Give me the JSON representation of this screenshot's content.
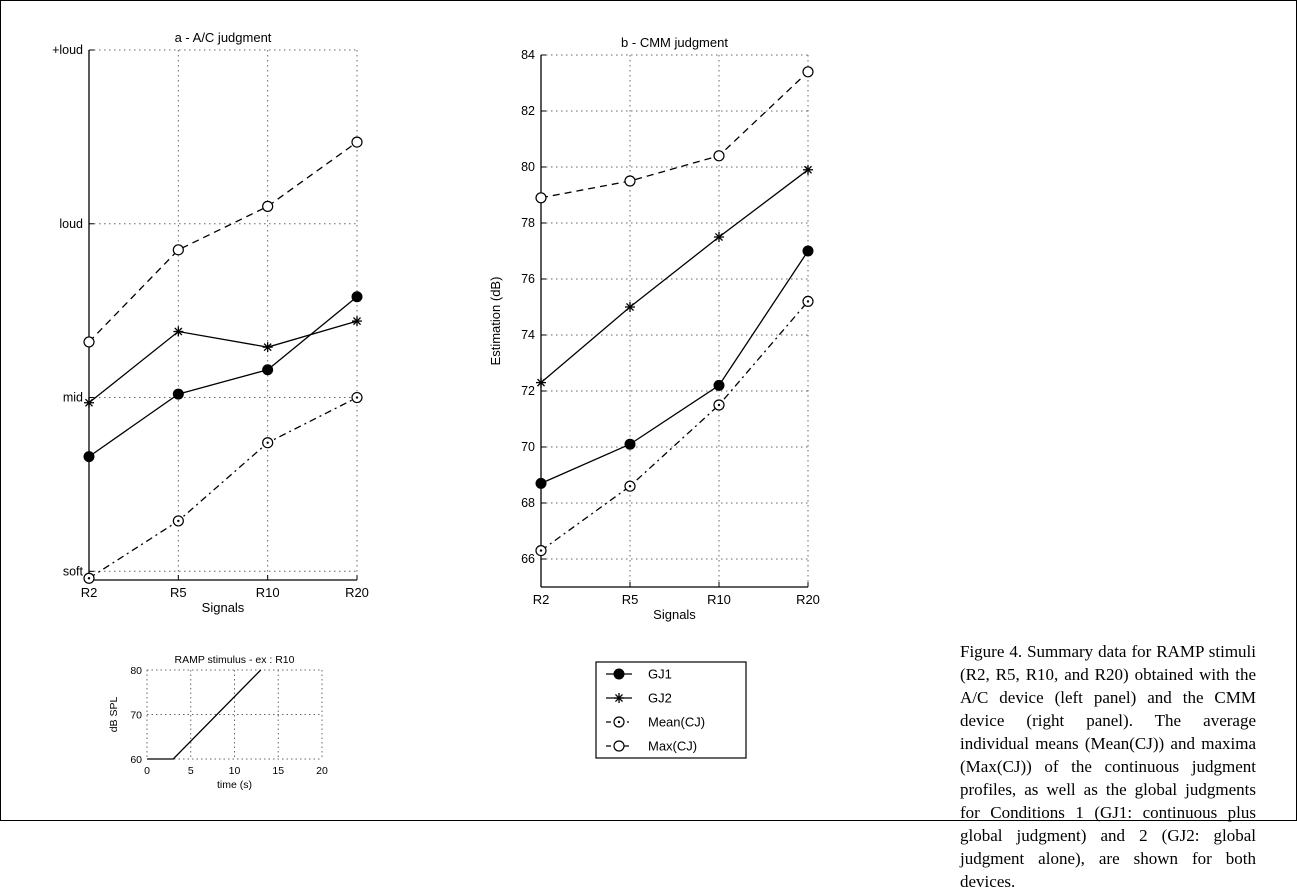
{
  "caption": "Figure 4. Summary data for RAMP stimuli (R2, R5, R10, and R20) obtained with the A/C device (left panel) and the CMM device (right panel). The average individual means (Mean(CJ)) and maxima (Max(CJ)) of the continuous judgment profiles, as well as the global judgments for Conditions 1 (GJ1: continuous plus global judgment) and 2 (GJ2: global judgment alone), are shown for both devices.",
  "chart_data": [
    {
      "type": "line",
      "title": "a - A/C judgment",
      "xlabel": "Signals",
      "ylabel": "",
      "categories": [
        "R2",
        "R5",
        "R10",
        "R20"
      ],
      "yticks": [
        {
          "value": 0,
          "label": "soft"
        },
        {
          "value": 1,
          "label": "mid"
        },
        {
          "value": 2,
          "label": "loud"
        },
        {
          "value": 3,
          "label": "+loud"
        }
      ],
      "ylim": [
        -0.05,
        3.0
      ],
      "grid": true,
      "series": [
        {
          "name": "GJ1",
          "marker": "filled-circle",
          "line": "solid",
          "values": [
            0.66,
            1.02,
            1.16,
            1.58
          ]
        },
        {
          "name": "GJ2",
          "marker": "star",
          "line": "solid",
          "values": [
            0.97,
            1.38,
            1.29,
            1.44
          ]
        },
        {
          "name": "Mean(CJ)",
          "marker": "dotted-circle",
          "line": "dashdot",
          "values": [
            -0.04,
            0.29,
            0.74,
            1.0
          ]
        },
        {
          "name": "Max(CJ)",
          "marker": "open-circle",
          "line": "dashed",
          "values": [
            1.32,
            1.85,
            2.1,
            2.47
          ]
        }
      ]
    },
    {
      "type": "line",
      "title": "b - CMM judgment",
      "xlabel": "Signals",
      "ylabel": "Estimation (dB)",
      "categories": [
        "R2",
        "R5",
        "R10",
        "R20"
      ],
      "yticks": [
        {
          "value": 66,
          "label": "66"
        },
        {
          "value": 68,
          "label": "68"
        },
        {
          "value": 70,
          "label": "70"
        },
        {
          "value": 72,
          "label": "72"
        },
        {
          "value": 74,
          "label": "74"
        },
        {
          "value": 76,
          "label": "76"
        },
        {
          "value": 78,
          "label": "78"
        },
        {
          "value": 80,
          "label": "80"
        },
        {
          "value": 82,
          "label": "82"
        },
        {
          "value": 84,
          "label": "84"
        }
      ],
      "ylim": [
        65,
        84
      ],
      "grid": true,
      "legend_position": "below",
      "series": [
        {
          "name": "GJ1",
          "marker": "filled-circle",
          "line": "solid",
          "values": [
            68.7,
            70.1,
            72.2,
            77.0
          ]
        },
        {
          "name": "GJ2",
          "marker": "star",
          "line": "solid",
          "values": [
            72.3,
            75.0,
            77.5,
            79.9
          ]
        },
        {
          "name": "Mean(CJ)",
          "marker": "dotted-circle",
          "line": "dashdot",
          "values": [
            66.3,
            68.6,
            71.5,
            75.2
          ]
        },
        {
          "name": "Max(CJ)",
          "marker": "open-circle",
          "line": "dashed",
          "values": [
            78.9,
            79.5,
            80.4,
            83.4
          ]
        }
      ]
    },
    {
      "type": "line",
      "title": "RAMP stimulus - ex : R10",
      "xlabel": "time (s)",
      "ylabel": "dB SPL",
      "xlim": [
        0,
        20
      ],
      "ylim": [
        60,
        80
      ],
      "xticks": [
        0,
        5,
        10,
        15,
        20
      ],
      "yticks": [
        60,
        70,
        80
      ],
      "grid": true,
      "series": [
        {
          "x": [
            0,
            3,
            13
          ],
          "y": [
            60,
            60,
            80
          ]
        }
      ]
    }
  ]
}
